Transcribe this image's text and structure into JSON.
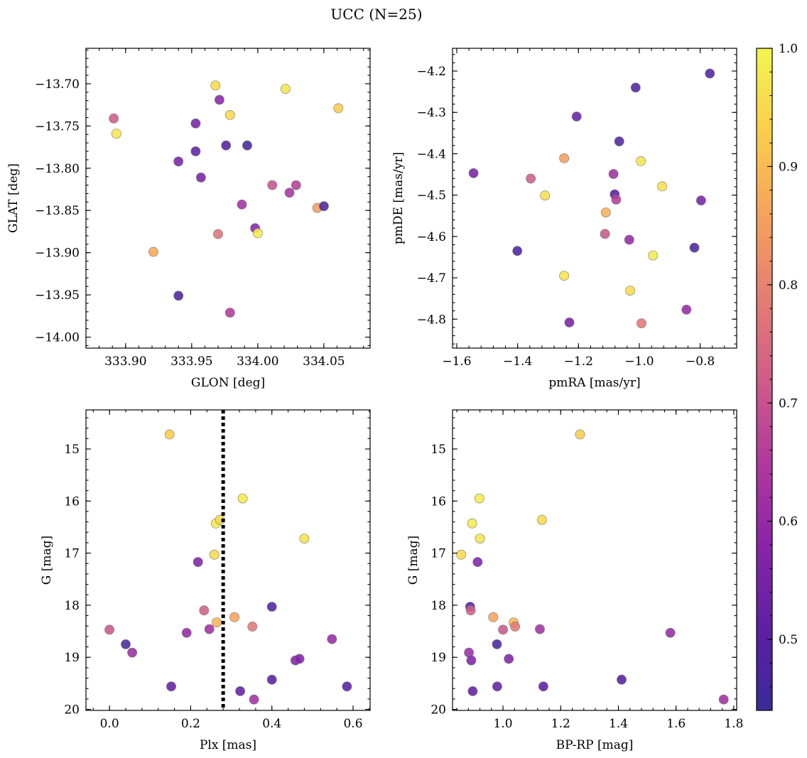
{
  "title": "UCC (N=25)",
  "colors": {
    "colormap": "plasma",
    "vline": "#000000"
  },
  "chart_data": [
    {
      "type": "scatter",
      "panel": "top-left",
      "xlabel": "GLON [deg]",
      "ylabel": "GLAT [deg]",
      "xlim": [
        333.87,
        334.085
      ],
      "ylim": [
        -14.013,
        -13.658
      ],
      "y_inverted": false,
      "xticks": [
        333.9,
        333.95,
        334.0,
        334.05
      ],
      "xtick_labels": [
        "333.90",
        "333.95",
        "334.00",
        "334.05"
      ],
      "yticks": [
        -13.7,
        -13.75,
        -13.8,
        -13.85,
        -13.9,
        -13.95,
        -14.0
      ],
      "ytick_labels": [
        "−13.70",
        "−13.75",
        "−13.80",
        "−13.85",
        "−13.90",
        "−13.95",
        "−14.00"
      ],
      "points": [
        {
          "x": 333.891,
          "y": -13.741,
          "c": 0.72
        },
        {
          "x": 333.893,
          "y": -13.759,
          "c": 0.97
        },
        {
          "x": 333.921,
          "y": -13.899,
          "c": 0.87
        },
        {
          "x": 333.94,
          "y": -13.792,
          "c": 0.55
        },
        {
          "x": 333.94,
          "y": -13.951,
          "c": 0.47
        },
        {
          "x": 333.953,
          "y": -13.747,
          "c": 0.55
        },
        {
          "x": 333.953,
          "y": -13.78,
          "c": 0.51
        },
        {
          "x": 333.957,
          "y": -13.811,
          "c": 0.55
        },
        {
          "x": 333.968,
          "y": -13.702,
          "c": 0.95
        },
        {
          "x": 333.971,
          "y": -13.719,
          "c": 0.58
        },
        {
          "x": 333.97,
          "y": -13.878,
          "c": 0.77
        },
        {
          "x": 333.976,
          "y": -13.773,
          "c": 0.5
        },
        {
          "x": 333.979,
          "y": -13.737,
          "c": 0.95
        },
        {
          "x": 333.979,
          "y": -13.971,
          "c": 0.65
        },
        {
          "x": 333.988,
          "y": -13.843,
          "c": 0.62
        },
        {
          "x": 333.992,
          "y": -13.773,
          "c": 0.46
        },
        {
          "x": 333.998,
          "y": -13.871,
          "c": 0.58
        },
        {
          "x": 334.0,
          "y": -13.877,
          "c": 0.98
        },
        {
          "x": 334.011,
          "y": -13.82,
          "c": 0.7
        },
        {
          "x": 334.021,
          "y": -13.706,
          "c": 0.97
        },
        {
          "x": 334.024,
          "y": -13.829,
          "c": 0.63
        },
        {
          "x": 334.029,
          "y": -13.82,
          "c": 0.66
        },
        {
          "x": 334.045,
          "y": -13.847,
          "c": 0.85
        },
        {
          "x": 334.05,
          "y": -13.845,
          "c": 0.48
        },
        {
          "x": 334.061,
          "y": -13.729,
          "c": 0.93
        }
      ]
    },
    {
      "type": "scatter",
      "panel": "top-right",
      "xlabel": "pmRA [mas/yr]",
      "ylabel": "pmDE [mas/yr]",
      "xlim": [
        -1.614,
        -0.68
      ],
      "ylim": [
        -4.87,
        -4.145
      ],
      "y_inverted": false,
      "xticks": [
        -1.6,
        -1.4,
        -1.2,
        -1.0,
        -0.8
      ],
      "xtick_labels": [
        "−1.6",
        "−1.4",
        "−1.2",
        "−1.0",
        "−0.8"
      ],
      "yticks": [
        -4.2,
        -4.3,
        -4.4,
        -4.5,
        -4.6,
        -4.7,
        -4.8
      ],
      "ytick_labels": [
        "−4.2",
        "−4.3",
        "−4.4",
        "−4.5",
        "−4.6",
        "−4.7",
        "−4.8"
      ],
      "points": [
        {
          "x": -1.545,
          "y": -4.447,
          "c": 0.55
        },
        {
          "x": -1.401,
          "y": -4.635,
          "c": 0.47
        },
        {
          "x": -1.357,
          "y": -4.46,
          "c": 0.72
        },
        {
          "x": -1.31,
          "y": -4.501,
          "c": 0.96
        },
        {
          "x": -1.247,
          "y": -4.411,
          "c": 0.85
        },
        {
          "x": -1.247,
          "y": -4.695,
          "c": 0.97
        },
        {
          "x": -1.23,
          "y": -4.808,
          "c": 0.55
        },
        {
          "x": -1.206,
          "y": -4.31,
          "c": 0.53
        },
        {
          "x": -1.113,
          "y": -4.594,
          "c": 0.71
        },
        {
          "x": -1.11,
          "y": -4.542,
          "c": 0.88
        },
        {
          "x": -1.085,
          "y": -4.449,
          "c": 0.62
        },
        {
          "x": -1.081,
          "y": -4.498,
          "c": 0.5
        },
        {
          "x": -1.076,
          "y": -4.511,
          "c": 0.66
        },
        {
          "x": -1.066,
          "y": -4.37,
          "c": 0.48
        },
        {
          "x": -1.033,
          "y": -4.608,
          "c": 0.6
        },
        {
          "x": -1.03,
          "y": -4.731,
          "c": 0.95
        },
        {
          "x": -1.012,
          "y": -4.24,
          "c": 0.48
        },
        {
          "x": -0.995,
          "y": -4.418,
          "c": 0.97
        },
        {
          "x": -0.993,
          "y": -4.81,
          "c": 0.78
        },
        {
          "x": -0.955,
          "y": -4.646,
          "c": 0.98
        },
        {
          "x": -0.925,
          "y": -4.479,
          "c": 0.96
        },
        {
          "x": -0.845,
          "y": -4.777,
          "c": 0.6
        },
        {
          "x": -0.819,
          "y": -4.627,
          "c": 0.47
        },
        {
          "x": -0.797,
          "y": -4.513,
          "c": 0.55
        },
        {
          "x": -0.768,
          "y": -4.206,
          "c": 0.49
        }
      ]
    },
    {
      "type": "scatter",
      "panel": "bottom-left",
      "xlabel": "Plx [mas]",
      "ylabel": "G [mag]",
      "xlim": [
        -0.058,
        0.642
      ],
      "ylim": [
        14.25,
        20.02
      ],
      "y_inverted": true,
      "xticks": [
        0.0,
        0.2,
        0.4,
        0.6
      ],
      "xtick_labels": [
        "0.0",
        "0.2",
        "0.4",
        "0.6"
      ],
      "yticks": [
        15,
        16,
        17,
        18,
        19,
        20
      ],
      "ytick_labels": [
        "15",
        "16",
        "17",
        "18",
        "19",
        "20"
      ],
      "vline": 0.28,
      "points": [
        {
          "x": 0.0,
          "y": 18.47,
          "c": 0.71
        },
        {
          "x": 0.04,
          "y": 18.75,
          "c": 0.47
        },
        {
          "x": 0.056,
          "y": 18.91,
          "c": 0.61
        },
        {
          "x": 0.148,
          "y": 14.72,
          "c": 0.93
        },
        {
          "x": 0.152,
          "y": 19.56,
          "c": 0.52
        },
        {
          "x": 0.19,
          "y": 18.53,
          "c": 0.6
        },
        {
          "x": 0.218,
          "y": 17.17,
          "c": 0.56
        },
        {
          "x": 0.233,
          "y": 18.1,
          "c": 0.73
        },
        {
          "x": 0.246,
          "y": 18.46,
          "c": 0.62
        },
        {
          "x": 0.258,
          "y": 17.03,
          "c": 0.95
        },
        {
          "x": 0.262,
          "y": 16.43,
          "c": 0.98
        },
        {
          "x": 0.264,
          "y": 18.33,
          "c": 0.89
        },
        {
          "x": 0.272,
          "y": 16.36,
          "c": 0.95
        },
        {
          "x": 0.308,
          "y": 18.23,
          "c": 0.86
        },
        {
          "x": 0.322,
          "y": 19.65,
          "c": 0.52
        },
        {
          "x": 0.328,
          "y": 15.95,
          "c": 0.98
        },
        {
          "x": 0.352,
          "y": 18.41,
          "c": 0.78
        },
        {
          "x": 0.356,
          "y": 19.81,
          "c": 0.62
        },
        {
          "x": 0.4,
          "y": 18.03,
          "c": 0.48
        },
        {
          "x": 0.4,
          "y": 19.43,
          "c": 0.5
        },
        {
          "x": 0.458,
          "y": 19.06,
          "c": 0.57
        },
        {
          "x": 0.468,
          "y": 19.03,
          "c": 0.57
        },
        {
          "x": 0.48,
          "y": 16.72,
          "c": 0.97
        },
        {
          "x": 0.548,
          "y": 18.65,
          "c": 0.6
        },
        {
          "x": 0.585,
          "y": 19.56,
          "c": 0.5
        }
      ]
    },
    {
      "type": "scatter",
      "panel": "bottom-right",
      "xlabel": "BP-RP [mag]",
      "ylabel": "G [mag]",
      "xlim": [
        0.825,
        1.81
      ],
      "ylim": [
        14.25,
        20.02
      ],
      "y_inverted": true,
      "xticks": [
        1.0,
        1.2,
        1.4,
        1.6,
        1.8
      ],
      "xtick_labels": [
        "1.0",
        "1.2",
        "1.4",
        "1.6",
        "1.8"
      ],
      "yticks": [
        15,
        16,
        17,
        18,
        19,
        20
      ],
      "ytick_labels": [
        "15",
        "16",
        "17",
        "18",
        "19",
        "20"
      ],
      "points": [
        {
          "x": 0.855,
          "y": 17.03,
          "c": 0.95
        },
        {
          "x": 0.882,
          "y": 18.91,
          "c": 0.61
        },
        {
          "x": 0.886,
          "y": 18.03,
          "c": 0.48
        },
        {
          "x": 0.888,
          "y": 18.1,
          "c": 0.73
        },
        {
          "x": 0.89,
          "y": 19.06,
          "c": 0.57
        },
        {
          "x": 0.893,
          "y": 16.43,
          "c": 0.98
        },
        {
          "x": 0.895,
          "y": 19.65,
          "c": 0.52
        },
        {
          "x": 0.912,
          "y": 17.17,
          "c": 0.56
        },
        {
          "x": 0.918,
          "y": 15.95,
          "c": 0.98
        },
        {
          "x": 0.92,
          "y": 16.72,
          "c": 0.97
        },
        {
          "x": 0.966,
          "y": 18.23,
          "c": 0.86
        },
        {
          "x": 0.979,
          "y": 18.75,
          "c": 0.47
        },
        {
          "x": 0.98,
          "y": 19.56,
          "c": 0.52
        },
        {
          "x": 1.0,
          "y": 18.47,
          "c": 0.71
        },
        {
          "x": 1.02,
          "y": 19.03,
          "c": 0.57
        },
        {
          "x": 1.037,
          "y": 18.33,
          "c": 0.89
        },
        {
          "x": 1.042,
          "y": 18.41,
          "c": 0.78
        },
        {
          "x": 1.128,
          "y": 18.46,
          "c": 0.62
        },
        {
          "x": 1.135,
          "y": 16.36,
          "c": 0.95
        },
        {
          "x": 1.14,
          "y": 19.56,
          "c": 0.5
        },
        {
          "x": 1.267,
          "y": 14.72,
          "c": 0.93
        },
        {
          "x": 1.411,
          "y": 19.43,
          "c": 0.5
        },
        {
          "x": 1.58,
          "y": 18.53,
          "c": 0.6
        },
        {
          "x": 1.765,
          "y": 19.81,
          "c": 0.62
        }
      ]
    }
  ],
  "colorbar": {
    "vmin": 0.44,
    "vmax": 1.0,
    "ticks": [
      0.5,
      0.6,
      0.7,
      0.8,
      0.9,
      1.0
    ],
    "tick_labels": [
      "0.5",
      "0.6",
      "0.7",
      "0.8",
      "0.9",
      "1.0"
    ]
  }
}
